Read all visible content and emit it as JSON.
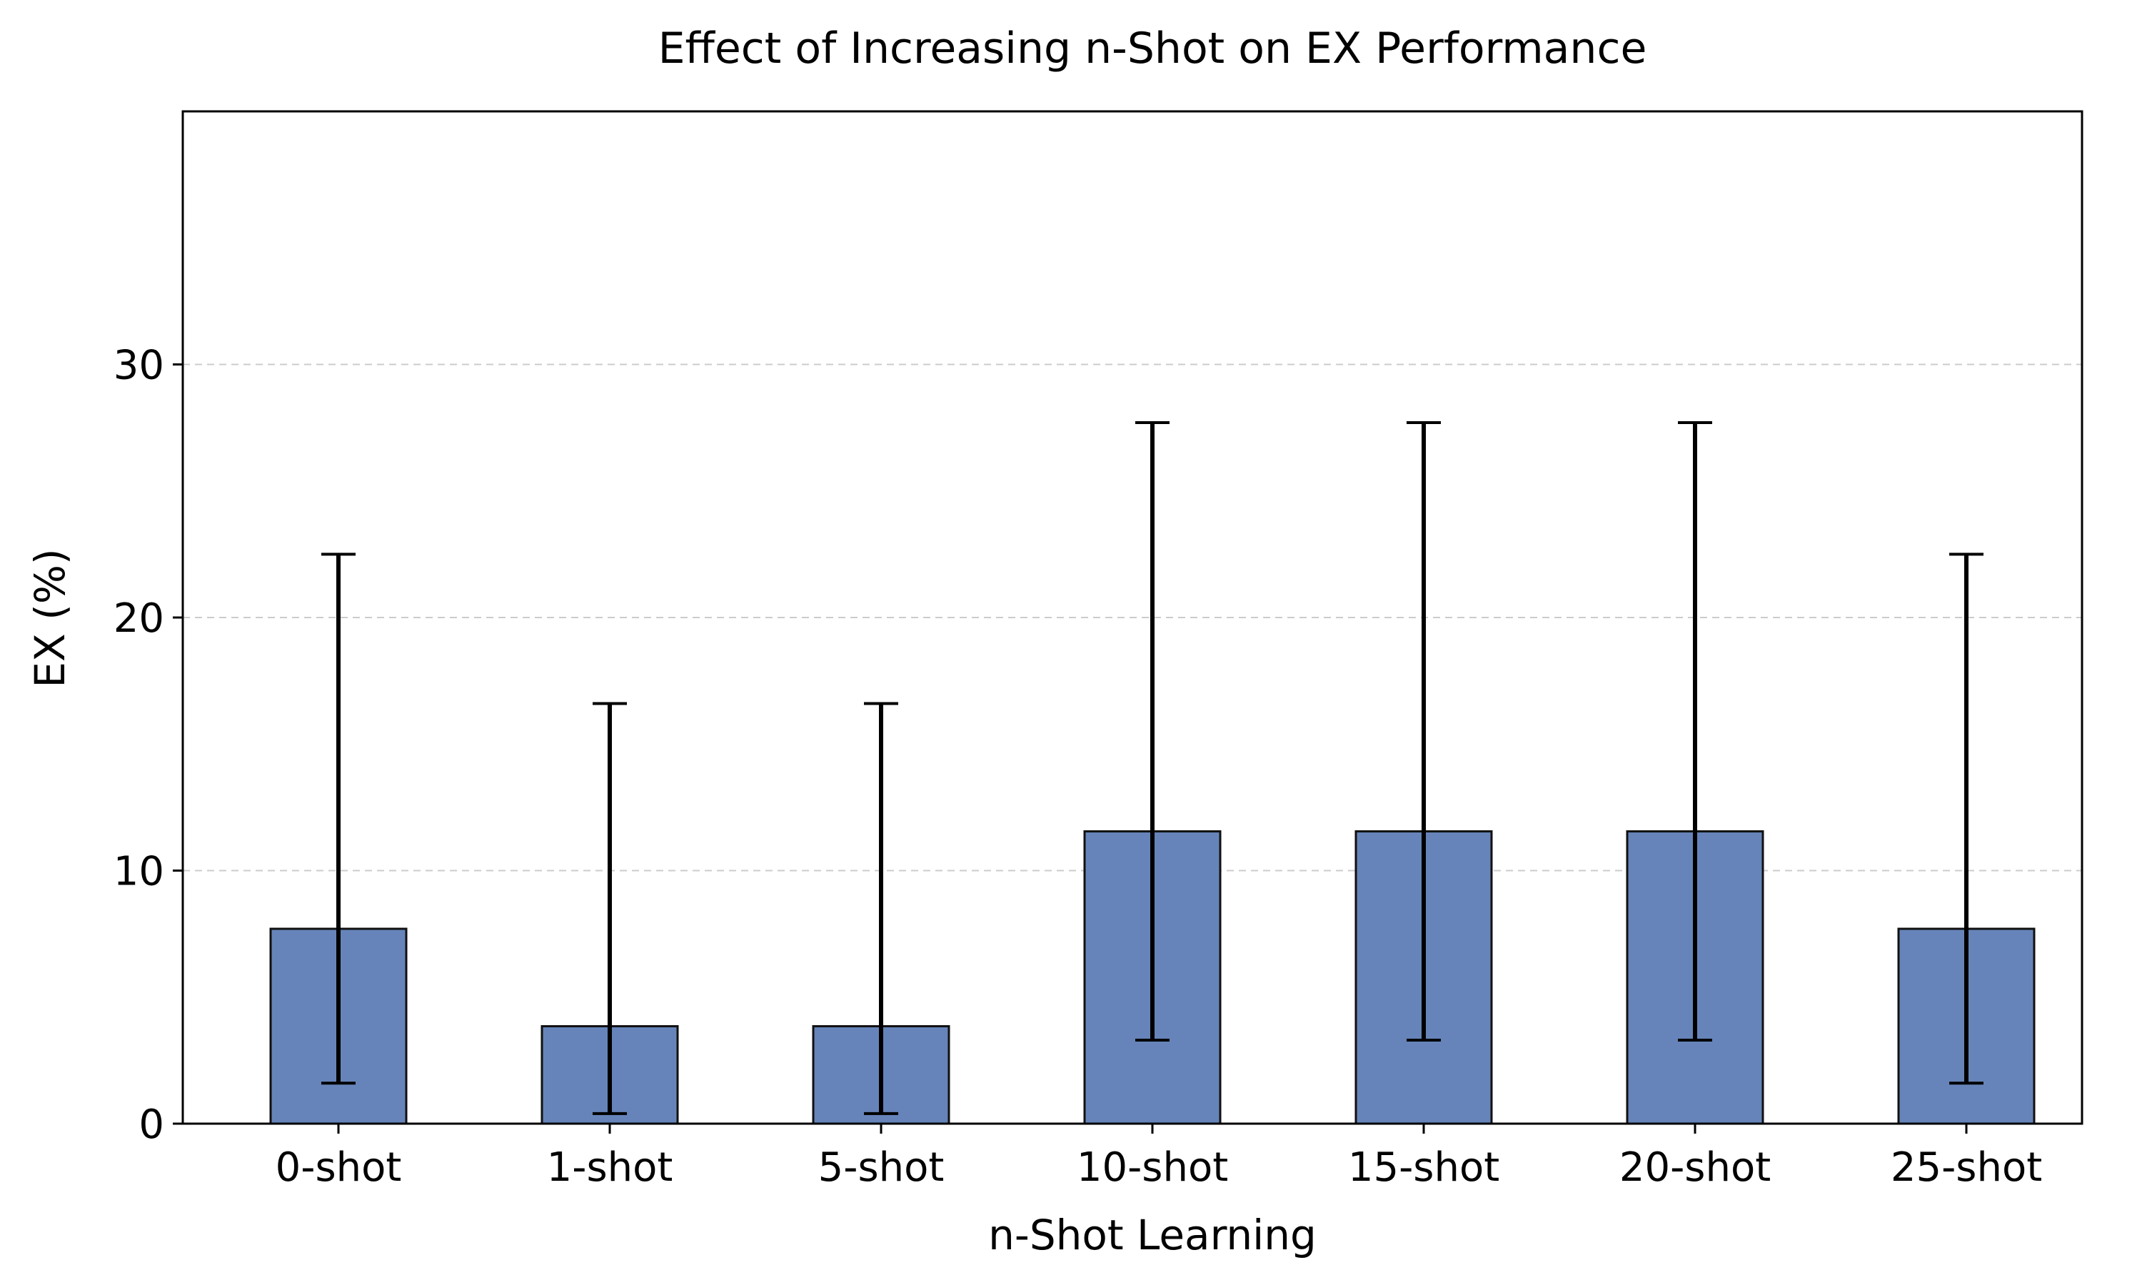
{
  "chart_data": {
    "type": "bar",
    "title": "Effect of Increasing n-Shot on EX Performance",
    "xlabel": "n-Shot Learning",
    "ylabel": "EX (%)",
    "categories": [
      "0-shot",
      "1-shot",
      "5-shot",
      "10-shot",
      "15-shot",
      "20-shot",
      "25-shot"
    ],
    "values": [
      7.7,
      3.85,
      3.85,
      11.55,
      11.55,
      11.55,
      7.7
    ],
    "error_low": [
      1.6,
      0.4,
      0.4,
      3.3,
      3.3,
      3.3,
      1.6
    ],
    "error_high": [
      22.5,
      16.6,
      16.6,
      27.7,
      27.7,
      27.7,
      22.5
    ],
    "ylim": [
      0,
      40
    ],
    "yticks": [
      "0",
      "10",
      "20",
      "30"
    ],
    "grid": "horizontal dashed",
    "bar_color": "#6684b9"
  }
}
